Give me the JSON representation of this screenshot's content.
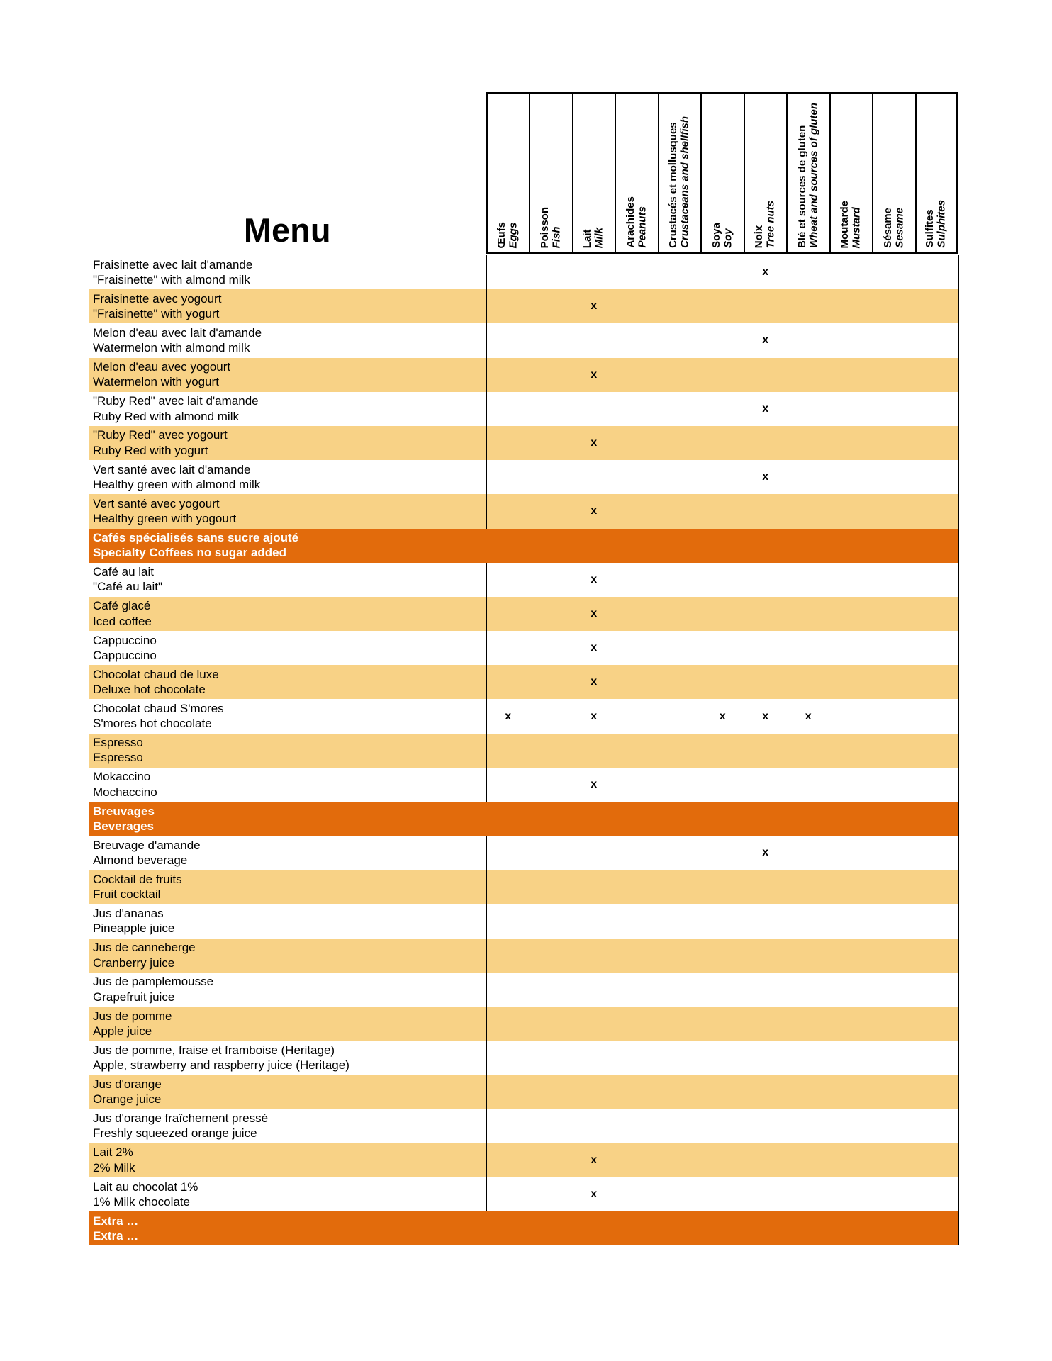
{
  "title": "Menu",
  "mark": "x",
  "colors": {
    "row_alt": "#F8D286",
    "section_bg": "#E26B0C",
    "section_text": "#FFFFFF",
    "border": "#000000",
    "text": "#000000"
  },
  "table": {
    "columns": [
      {
        "fr": "Œufs",
        "en": "Eggs"
      },
      {
        "fr": "Poisson",
        "en": "Fish"
      },
      {
        "fr": "Lait",
        "en": "Milk"
      },
      {
        "fr": "Arachides",
        "en": "Peanuts"
      },
      {
        "fr": "Crustacés et  mollusques",
        "en": "Crustaceans and shellfish"
      },
      {
        "fr": "Soya",
        "en": "Soy"
      },
      {
        "fr": "Noix",
        "en": "Tree nuts"
      },
      {
        "fr": "Blé et sources de gluten",
        "en": "Wheat and sources of gluten"
      },
      {
        "fr": "Moutarde",
        "en": "Mustard"
      },
      {
        "fr": "Sésame",
        "en": "Sesame"
      },
      {
        "fr": "Sulfites",
        "en": "Sulphites"
      }
    ],
    "rows": [
      {
        "type": "item",
        "fr": "Fraisinette avec lait d'amande",
        "en": "\"Fraisinette\" with almond milk",
        "marks": [
          6
        ]
      },
      {
        "type": "item",
        "fr": "Fraisinette avec yogourt",
        "en": "\"Fraisinette\" with yogurt",
        "marks": [
          2
        ]
      },
      {
        "type": "item",
        "fr": "Melon d'eau avec lait d'amande",
        "en": "Watermelon with almond milk",
        "marks": [
          6
        ]
      },
      {
        "type": "item",
        "fr": "Melon d'eau avec yogourt",
        "en": "Watermelon with yogurt",
        "marks": [
          2
        ]
      },
      {
        "type": "item",
        "fr": "\"Ruby Red\" avec lait d'amande",
        "en": "Ruby Red with almond milk",
        "marks": [
          6
        ]
      },
      {
        "type": "item",
        "fr": "\"Ruby Red\" avec yogourt",
        "en": "Ruby Red with yogurt",
        "marks": [
          2
        ]
      },
      {
        "type": "item",
        "fr": "Vert santé avec lait d'amande",
        "en": "Healthy green with almond milk",
        "marks": [
          6
        ]
      },
      {
        "type": "item",
        "fr": "Vert santé avec yogourt",
        "en": "Healthy green with yogourt",
        "marks": [
          2
        ]
      },
      {
        "type": "section",
        "fr": "Cafés spécialisés sans sucre ajouté",
        "en": "Specialty Coffees no sugar added",
        "marks": []
      },
      {
        "type": "item",
        "fr": "Café au lait",
        "en": "\"Café au lait\"",
        "marks": [
          2
        ]
      },
      {
        "type": "item",
        "fr": "Café glacé",
        "en": "Iced coffee",
        "marks": [
          2
        ]
      },
      {
        "type": "item",
        "fr": "Cappuccino",
        "en": "Cappuccino",
        "marks": [
          2
        ]
      },
      {
        "type": "item",
        "fr": "Chocolat chaud de luxe",
        "en": "Deluxe hot chocolate",
        "marks": [
          2
        ]
      },
      {
        "type": "item",
        "fr": "Chocolat chaud S'mores",
        "en": "S'mores hot chocolate",
        "marks": [
          0,
          2,
          5,
          6,
          7
        ]
      },
      {
        "type": "item",
        "fr": "Espresso",
        "en": "Espresso",
        "marks": []
      },
      {
        "type": "item",
        "fr": "Mokaccino",
        "en": "Mochaccino",
        "marks": [
          2
        ]
      },
      {
        "type": "section",
        "fr": "Breuvages",
        "en": "Beverages",
        "marks": []
      },
      {
        "type": "item",
        "fr": "Breuvage d'amande",
        "en": "Almond beverage",
        "marks": [
          6
        ]
      },
      {
        "type": "item",
        "fr": "Cocktail de fruits",
        "en": "Fruit cocktail",
        "marks": []
      },
      {
        "type": "item",
        "fr": "Jus d'ananas",
        "en": "Pineapple juice",
        "marks": []
      },
      {
        "type": "item",
        "fr": "Jus de canneberge",
        "en": "Cranberry juice",
        "marks": []
      },
      {
        "type": "item",
        "fr": "Jus de pamplemousse",
        "en": "Grapefruit juice",
        "marks": []
      },
      {
        "type": "item",
        "fr": "Jus de pomme",
        "en": "Apple juice",
        "marks": []
      },
      {
        "type": "item",
        "fr": "Jus de pomme, fraise et framboise (Heritage)",
        "en": "Apple, strawberry and raspberry juice (Heritage)",
        "marks": []
      },
      {
        "type": "item",
        "fr": "Jus d'orange",
        "en": "Orange juice",
        "marks": []
      },
      {
        "type": "item",
        "fr": "Jus d'orange fraîchement pressé",
        "en": "Freshly squeezed orange juice",
        "marks": []
      },
      {
        "type": "item",
        "fr": "Lait 2%",
        "en": "2% Milk",
        "marks": [
          2
        ]
      },
      {
        "type": "item",
        "fr": "Lait au chocolat 1%",
        "en": "1% Milk chocolate",
        "marks": [
          2
        ]
      },
      {
        "type": "section",
        "fr": "Extra …",
        "en": "Extra …",
        "marks": []
      }
    ]
  }
}
